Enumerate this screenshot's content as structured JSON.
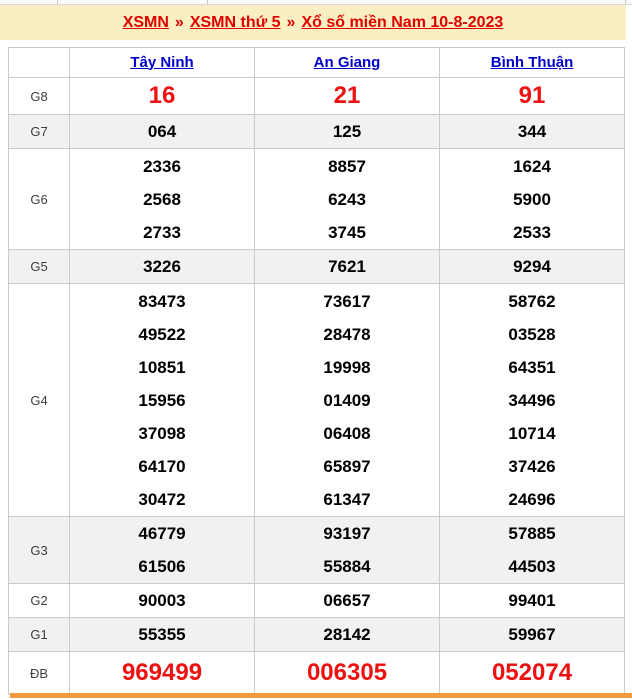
{
  "breadcrumb": {
    "separator": "»",
    "items": [
      "XSMN",
      "XSMN thứ 5",
      "Xổ số miền Nam 10-8-2023"
    ]
  },
  "table": {
    "provinces": [
      "Tây Ninh",
      "An Giang",
      "Bình Thuận"
    ],
    "rows": [
      {
        "label": "G8",
        "highlight": true,
        "values": [
          [
            "16"
          ],
          [
            "21"
          ],
          [
            "91"
          ]
        ]
      },
      {
        "label": "G7",
        "values": [
          [
            "064"
          ],
          [
            "125"
          ],
          [
            "344"
          ]
        ]
      },
      {
        "label": "G6",
        "values": [
          [
            "2336",
            "2568",
            "2733"
          ],
          [
            "8857",
            "6243",
            "3745"
          ],
          [
            "1624",
            "5900",
            "2533"
          ]
        ]
      },
      {
        "label": "G5",
        "values": [
          [
            "3226"
          ],
          [
            "7621"
          ],
          [
            "9294"
          ]
        ]
      },
      {
        "label": "G4",
        "values": [
          [
            "83473",
            "49522",
            "10851",
            "15956",
            "37098",
            "64170",
            "30472"
          ],
          [
            "73617",
            "28478",
            "19998",
            "01409",
            "06408",
            "65897",
            "61347"
          ],
          [
            "58762",
            "03528",
            "64351",
            "34496",
            "10714",
            "37426",
            "24696"
          ]
        ]
      },
      {
        "label": "G3",
        "values": [
          [
            "46779",
            "61506"
          ],
          [
            "93197",
            "55884"
          ],
          [
            "57885",
            "44503"
          ]
        ]
      },
      {
        "label": "G2",
        "values": [
          [
            "90003"
          ],
          [
            "06657"
          ],
          [
            "99401"
          ]
        ]
      },
      {
        "label": "G1",
        "values": [
          [
            "55355"
          ],
          [
            "28142"
          ],
          [
            "59967"
          ]
        ]
      },
      {
        "label": "ĐB",
        "highlight": true,
        "values": [
          [
            "969499"
          ],
          [
            "006305"
          ],
          [
            "052074"
          ]
        ]
      }
    ]
  },
  "colors": {
    "banner_bg": "#faefc2",
    "breadcrumb_link_red": "#df0000",
    "province_link_blue": "#0000cc",
    "highlight_number_red": "#ee1111",
    "shaded_row_bg": "#f1f1f1",
    "table_border": "#cbcbcb",
    "bottom_bar_orange": "#f49a3c"
  }
}
